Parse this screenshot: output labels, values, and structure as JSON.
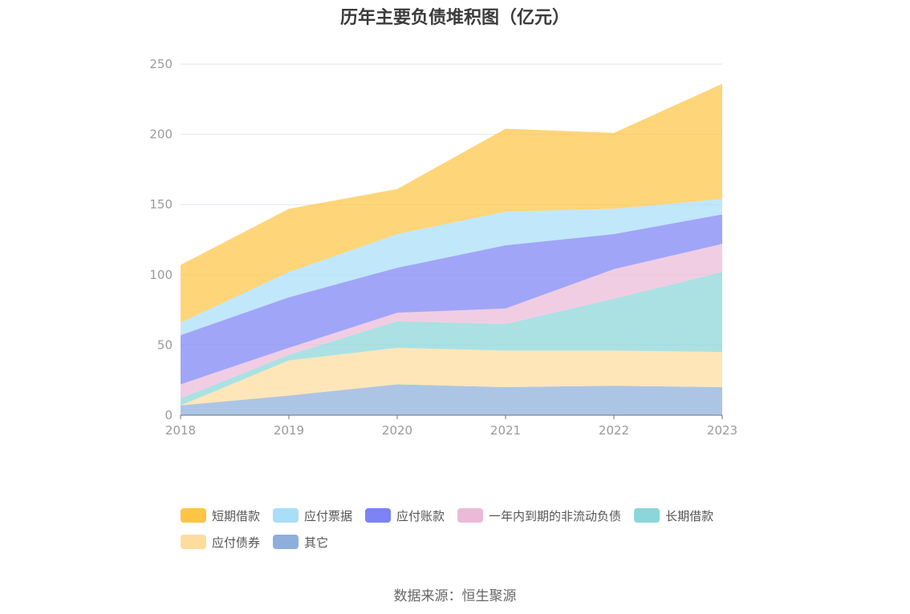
{
  "chart_data": {
    "type": "area",
    "stacked": true,
    "title": "历年主要负债堆积图（亿元）",
    "x": [
      "2018",
      "2019",
      "2020",
      "2021",
      "2022",
      "2023"
    ],
    "y_ticks": [
      "0",
      "50",
      "100",
      "150",
      "200",
      "250"
    ],
    "ylim": [
      0,
      250
    ],
    "grid": true,
    "legend_position": "bottom",
    "series": [
      {
        "name": "其它",
        "color": "#8eaedb",
        "values": [
          7,
          14,
          22,
          20,
          21,
          20
        ]
      },
      {
        "name": "应付债券",
        "color": "#fedc9e",
        "values": [
          0,
          25,
          26,
          26,
          25,
          25
        ]
      },
      {
        "name": "长期借款",
        "color": "#8ad6d8",
        "values": [
          5,
          4,
          19,
          19,
          37,
          57
        ]
      },
      {
        "name": "一年内到期的非流动负债",
        "color": "#ecbad9",
        "values": [
          10,
          5,
          6,
          11,
          21,
          20
        ]
      },
      {
        "name": "应付账款",
        "color": "#7d82f4",
        "values": [
          35,
          36,
          32,
          45,
          25,
          21
        ]
      },
      {
        "name": "应付票据",
        "color": "#a9def8",
        "values": [
          9,
          18,
          24,
          24,
          18,
          11
        ]
      },
      {
        "name": "短期借款",
        "color": "#fdc544",
        "values": [
          41,
          45,
          32,
          59,
          54,
          82
        ]
      }
    ],
    "legend_order": [
      "短期借款",
      "应付票据",
      "应付账款",
      "一年内到期的非流动负债",
      "长期借款",
      "应付债券",
      "其它"
    ]
  },
  "footer": {
    "source": "数据来源：恒生聚源"
  }
}
